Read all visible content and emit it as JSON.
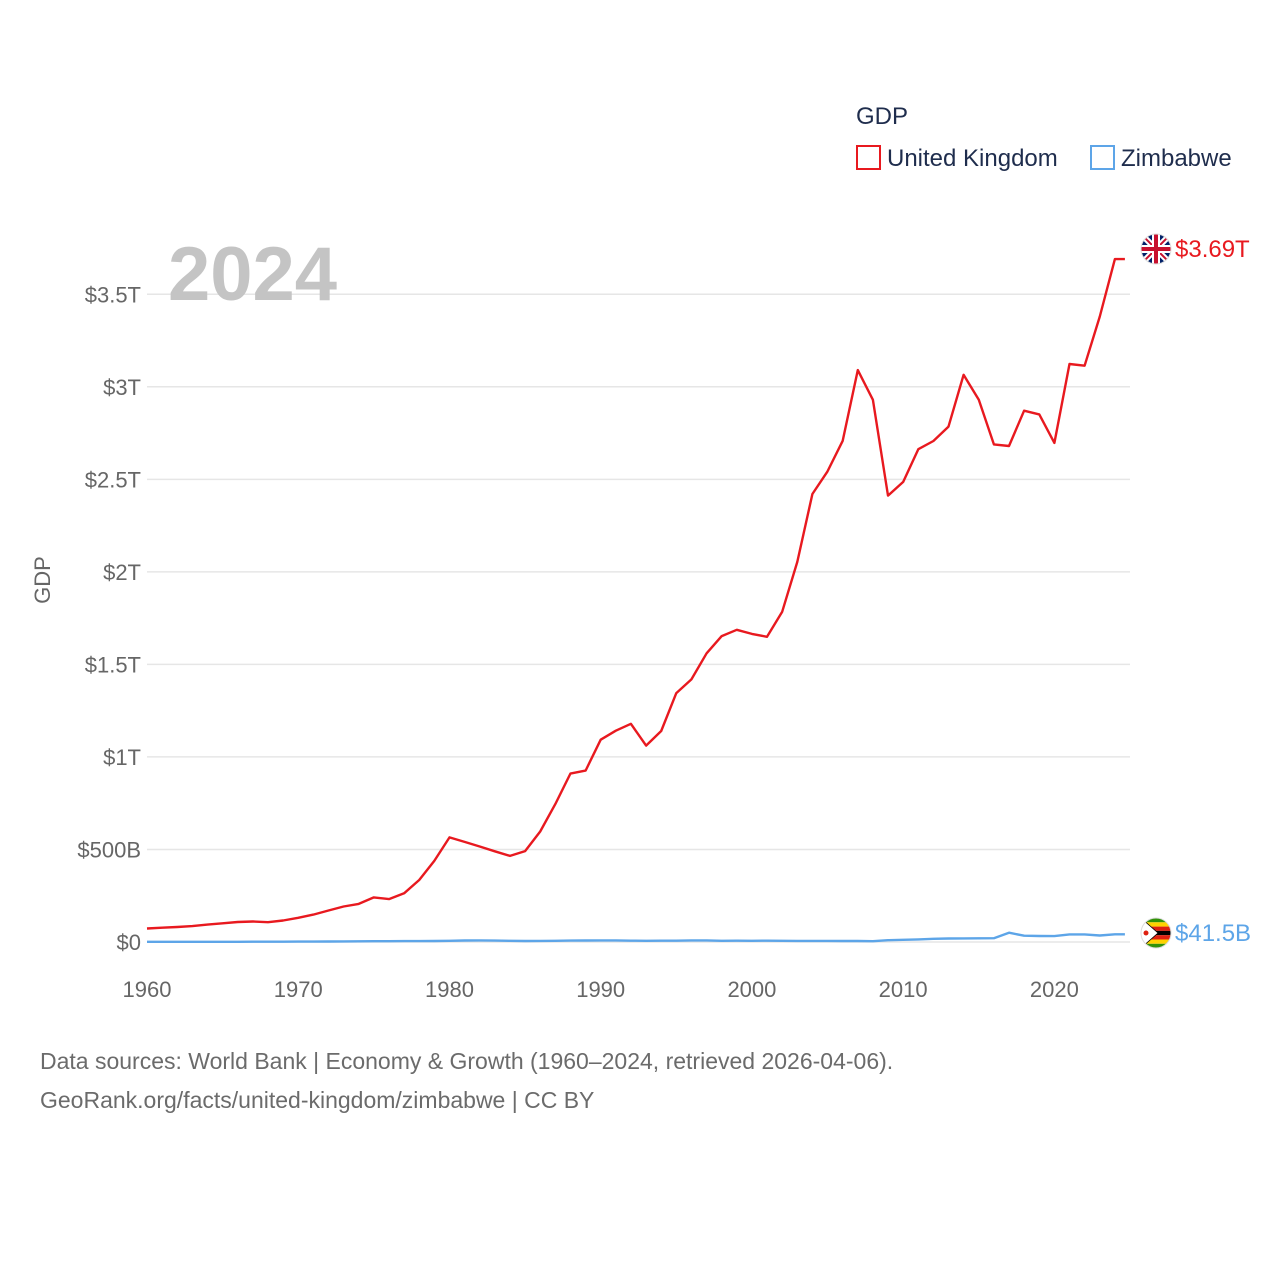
{
  "legend": {
    "title": "GDP",
    "items": [
      {
        "label": "United Kingdom",
        "color": "#e8191f"
      },
      {
        "label": "Zimbabwe",
        "color": "#5da5e8"
      }
    ]
  },
  "year_watermark": "2024",
  "end_labels": {
    "uk": "$3.69T",
    "zw": "$41.5B"
  },
  "source": {
    "line1": "Data sources: World Bank | Economy & Growth (1960–2024, retrieved 2026-04-06).",
    "line2": "GeoRank.org/facts/united-kingdom/zimbabwe | CC BY"
  },
  "chart_data": {
    "type": "line",
    "title": "GDP",
    "xlabel": "",
    "ylabel": "GDP",
    "xlim": [
      1960,
      2025
    ],
    "ylim": [
      0,
      3750
    ],
    "unit": "billion USD",
    "x_ticks": [
      1960,
      1970,
      1980,
      1990,
      2000,
      2010,
      2020
    ],
    "x_tick_labels": [
      "1960",
      "1970",
      "1980",
      "1990",
      "2000",
      "2010",
      "2020"
    ],
    "y_ticks": [
      0,
      500,
      1000,
      1500,
      2000,
      2500,
      3000,
      3500
    ],
    "y_tick_labels": [
      "$0",
      "$500B",
      "$1T",
      "$1.5T",
      "$2T",
      "$2.5T",
      "$3T",
      "$3.5T"
    ],
    "grid": true,
    "legend": "top-right",
    "series": [
      {
        "name": "United Kingdom",
        "color": "#e8191f",
        "x": [
          1960,
          1961,
          1962,
          1963,
          1964,
          1965,
          1966,
          1967,
          1968,
          1969,
          1970,
          1971,
          1972,
          1973,
          1974,
          1975,
          1976,
          1977,
          1978,
          1979,
          1980,
          1981,
          1982,
          1983,
          1984,
          1985,
          1986,
          1987,
          1988,
          1989,
          1990,
          1991,
          1992,
          1993,
          1994,
          1995,
          1996,
          1997,
          1998,
          1999,
          2000,
          2001,
          2002,
          2003,
          2004,
          2005,
          2006,
          2007,
          2008,
          2009,
          2010,
          2011,
          2012,
          2013,
          2014,
          2015,
          2016,
          2017,
          2018,
          2019,
          2020,
          2021,
          2022,
          2023,
          2024
        ],
        "values": [
          73,
          77,
          81,
          86,
          94,
          101,
          108,
          111,
          107,
          116,
          131,
          148,
          170,
          192,
          206,
          241,
          232,
          263,
          335,
          438,
          565,
          541,
          516,
          490,
          465,
          491,
          597,
          745,
          910,
          926,
          1093,
          1142,
          1179,
          1061,
          1140,
          1345,
          1419,
          1560,
          1653,
          1687,
          1665,
          1649,
          1785,
          2054,
          2421,
          2543,
          2708,
          3090,
          2930,
          2412,
          2486,
          2663,
          2707,
          2785,
          3065,
          2930,
          2689,
          2680,
          2871,
          2851,
          2697,
          3123,
          3114,
          3380,
          3690
        ]
      },
      {
        "name": "Zimbabwe",
        "color": "#5da5e8",
        "x": [
          1960,
          1961,
          1962,
          1963,
          1964,
          1965,
          1966,
          1967,
          1968,
          1969,
          1970,
          1971,
          1972,
          1973,
          1974,
          1975,
          1976,
          1977,
          1978,
          1979,
          1980,
          1981,
          1982,
          1983,
          1984,
          1985,
          1986,
          1987,
          1988,
          1989,
          1990,
          1991,
          1992,
          1993,
          1994,
          1995,
          1996,
          1997,
          1998,
          1999,
          2000,
          2001,
          2002,
          2003,
          2004,
          2005,
          2006,
          2007,
          2008,
          2009,
          2010,
          2011,
          2012,
          2013,
          2014,
          2015,
          2016,
          2017,
          2018,
          2019,
          2020,
          2021,
          2022,
          2023,
          2024
        ],
        "values": [
          1.1,
          1.1,
          1.2,
          1.2,
          1.2,
          1.3,
          1.3,
          1.4,
          1.5,
          1.7,
          1.9,
          2.2,
          2.7,
          3.3,
          4.0,
          4.3,
          4.5,
          4.6,
          4.8,
          5.6,
          6.7,
          8.0,
          8.5,
          7.8,
          6.4,
          5.6,
          6.2,
          6.7,
          7.8,
          8.3,
          8.8,
          8.6,
          6.8,
          6.6,
          6.8,
          7.1,
          8.6,
          8.5,
          6.4,
          6.9,
          6.7,
          6.8,
          6.3,
          5.7,
          5.8,
          5.8,
          5.4,
          5.3,
          4.4,
          9.7,
          12.0,
          14.1,
          17.1,
          19.1,
          19.5,
          19.96,
          20.5,
          50.0,
          34.2,
          32.4,
          31.8,
          40.8,
          41.2,
          35.2,
          41.5
        ]
      }
    ]
  }
}
